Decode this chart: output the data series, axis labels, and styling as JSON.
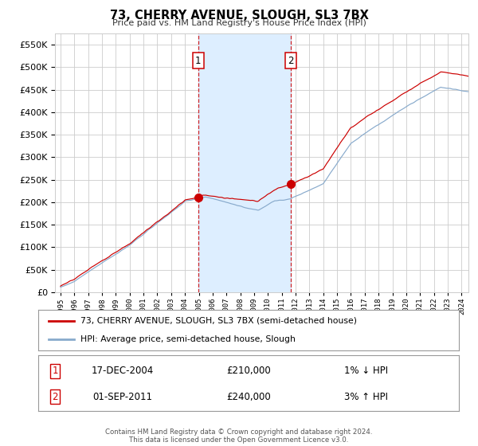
{
  "title": "73, CHERRY AVENUE, SLOUGH, SL3 7BX",
  "subtitle": "Price paid vs. HM Land Registry's House Price Index (HPI)",
  "legend_line1": "73, CHERRY AVENUE, SLOUGH, SL3 7BX (semi-detached house)",
  "legend_line2": "HPI: Average price, semi-detached house, Slough",
  "footer1": "Contains HM Land Registry data © Crown copyright and database right 2024.",
  "footer2": "This data is licensed under the Open Government Licence v3.0.",
  "annotation1_label": "1",
  "annotation1_date": "17-DEC-2004",
  "annotation1_price": "£210,000",
  "annotation1_hpi": "1% ↓ HPI",
  "annotation2_label": "2",
  "annotation2_date": "01-SEP-2011",
  "annotation2_price": "£240,000",
  "annotation2_hpi": "3% ↑ HPI",
  "sale1_x": 2004.96,
  "sale1_y": 210000,
  "sale2_x": 2011.67,
  "sale2_y": 240000,
  "vline1_x": 2004.96,
  "vline2_x": 2011.67,
  "shading_start": 2004.96,
  "shading_end": 2011.67,
  "ylim": [
    0,
    575000
  ],
  "xlim_start": 1994.6,
  "xlim_end": 2024.5,
  "red_color": "#cc0000",
  "blue_color": "#88aacc",
  "shading_color": "#ddeeff",
  "grid_color": "#cccccc",
  "background_color": "#ffffff",
  "yticks": [
    0,
    50000,
    100000,
    150000,
    200000,
    250000,
    300000,
    350000,
    400000,
    450000,
    500000,
    550000
  ]
}
